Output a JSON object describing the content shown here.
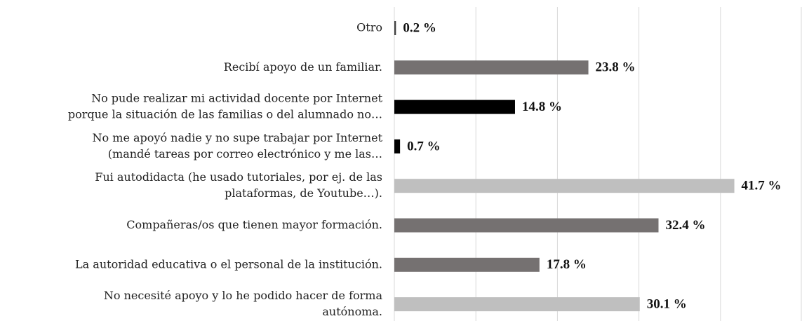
{
  "chart_data": {
    "type": "bar",
    "orientation": "horizontal",
    "categories": [
      [
        "Otro"
      ],
      [
        "Recibí apoyo de un familiar."
      ],
      [
        "No pude realizar mi actividad docente por Internet",
        "porque la situación de las familias o del alumnado no…"
      ],
      [
        "No me apoyó nadie y no supe trabajar por Internet",
        "(mandé tareas por correo electrónico y me las…"
      ],
      [
        "Fui autodidacta (he usado tutoriales, por ej. de las",
        "plataformas, de Youtube…)."
      ],
      [
        "Compañeras/os que tienen mayor formación."
      ],
      [
        "La autoridad educativa o el personal de la institución."
      ],
      [
        "No necesité apoyo y lo he podido hacer de forma",
        "autónoma."
      ]
    ],
    "values": [
      0.2,
      23.8,
      14.8,
      0.7,
      41.7,
      32.4,
      17.8,
      30.1
    ],
    "value_labels": [
      "0.2 %",
      "23.8 %",
      "14.8 %",
      "0.7 %",
      "41.7 %",
      "32.4 %",
      "17.8 %",
      "30.1 %"
    ],
    "colors": [
      "#404040",
      "#757171",
      "#000000",
      "#000000",
      "#bfbfbf",
      "#757171",
      "#757171",
      "#bfbfbf"
    ],
    "xlim": [
      0,
      50
    ],
    "xticks": [
      0,
      10,
      20,
      30,
      40,
      50
    ],
    "grid": true
  }
}
